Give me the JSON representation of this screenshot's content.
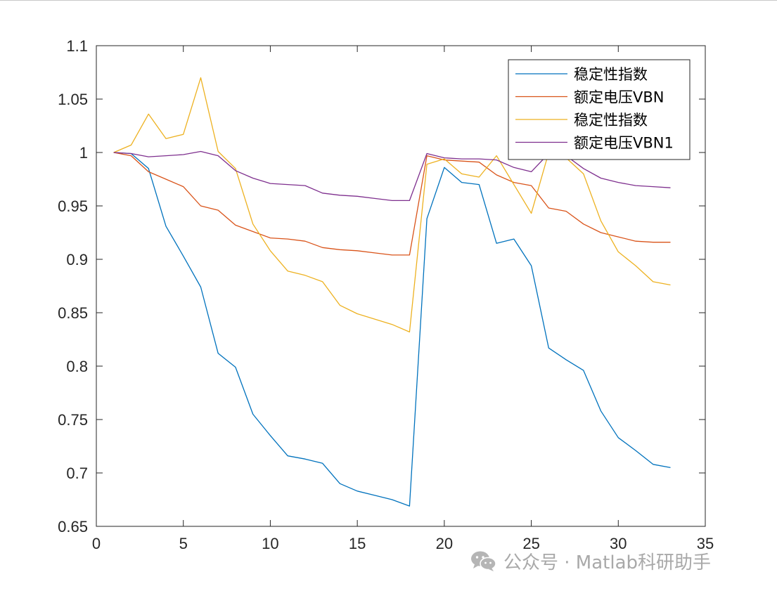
{
  "chart_data": {
    "type": "line",
    "title": "",
    "xlabel": "",
    "ylabel": "",
    "xlim": [
      0,
      35
    ],
    "ylim": [
      0.65,
      1.1
    ],
    "x_ticks": [
      0,
      5,
      10,
      15,
      20,
      25,
      30,
      35
    ],
    "y_ticks": [
      0.65,
      0.7,
      0.75,
      0.8,
      0.85,
      0.9,
      0.95,
      1,
      1.05,
      1.1
    ],
    "x_tick_labels": [
      "0",
      "5",
      "10",
      "15",
      "20",
      "25",
      "30",
      "35"
    ],
    "y_tick_labels": [
      "0.65",
      "0.7",
      "0.75",
      "0.8",
      "0.85",
      "0.9",
      "0.95",
      "1",
      "1.05",
      "1.1"
    ],
    "grid": false,
    "legend_position": "top-right",
    "x": [
      1,
      2,
      3,
      4,
      5,
      6,
      7,
      8,
      9,
      10,
      11,
      12,
      13,
      14,
      15,
      16,
      17,
      18,
      19,
      20,
      21,
      22,
      23,
      24,
      25,
      26,
      27,
      28,
      29,
      30,
      31,
      32,
      33
    ],
    "series": [
      {
        "name": "稳定性指数",
        "color": "#0072BD",
        "values": [
          1.0,
          0.999,
          0.985,
          0.931,
          0.903,
          0.874,
          0.812,
          0.799,
          0.755,
          0.735,
          0.716,
          0.713,
          0.709,
          0.69,
          0.683,
          0.679,
          0.675,
          0.669,
          0.938,
          0.986,
          0.972,
          0.97,
          0.915,
          0.919,
          0.894,
          0.817,
          0.806,
          0.796,
          0.758,
          0.733,
          0.721,
          0.708,
          0.705
        ]
      },
      {
        "name": "额定电压VBN",
        "color": "#D95319",
        "values": [
          1.0,
          0.997,
          0.982,
          0.975,
          0.968,
          0.95,
          0.946,
          0.932,
          0.926,
          0.92,
          0.919,
          0.917,
          0.911,
          0.909,
          0.908,
          0.906,
          0.904,
          0.904,
          0.997,
          0.993,
          0.992,
          0.991,
          0.979,
          0.972,
          0.969,
          0.948,
          0.945,
          0.933,
          0.925,
          0.921,
          0.917,
          0.916,
          0.916
        ]
      },
      {
        "name": "稳定性指数",
        "color": "#EDB120",
        "values": [
          1.0,
          1.007,
          1.036,
          1.013,
          1.017,
          1.07,
          1.001,
          0.985,
          0.933,
          0.908,
          0.889,
          0.885,
          0.879,
          0.857,
          0.849,
          0.844,
          0.839,
          0.832,
          0.989,
          0.994,
          0.98,
          0.977,
          0.997,
          0.97,
          0.943,
          1.0,
          0.995,
          0.98,
          0.936,
          0.907,
          0.894,
          0.879,
          0.876
        ]
      },
      {
        "name": "额定电压VBN1",
        "color": "#7E2F8E",
        "values": [
          1.0,
          0.999,
          0.996,
          0.997,
          0.998,
          1.001,
          0.997,
          0.983,
          0.976,
          0.971,
          0.97,
          0.969,
          0.962,
          0.96,
          0.959,
          0.957,
          0.955,
          0.955,
          0.999,
          0.995,
          0.994,
          0.994,
          0.993,
          0.986,
          0.982,
          0.999,
          0.997,
          0.985,
          0.976,
          0.972,
          0.969,
          0.968,
          0.967
        ]
      }
    ]
  },
  "watermark": {
    "icon": "wechat-icon",
    "text": "公众号 · Matlab科研助手"
  }
}
